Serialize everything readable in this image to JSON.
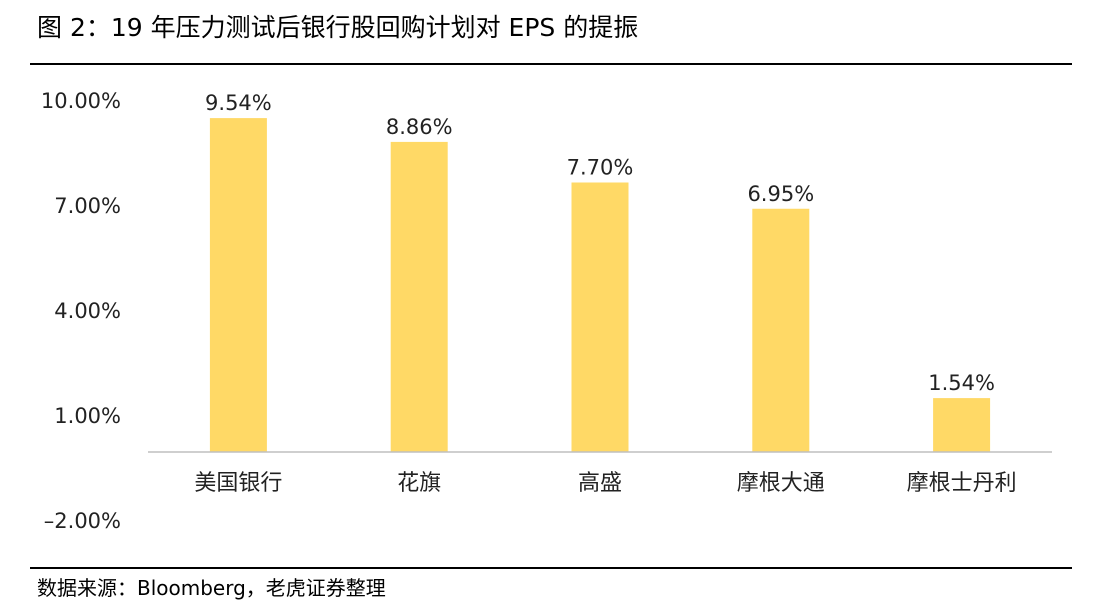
{
  "header": {
    "title": "图 2：19 年压力测试后银行股回购计划对 EPS 的提振"
  },
  "footer": {
    "source": "数据来源：Bloomberg，老虎证券整理"
  },
  "chart_data": {
    "type": "bar",
    "categories": [
      "美国银行",
      "花旗",
      "高盛",
      "摩根大通",
      "摩根士丹利"
    ],
    "values": [
      9.54,
      8.86,
      7.7,
      6.95,
      1.54
    ],
    "data_labels": [
      "9.54%",
      "8.86%",
      "7.70%",
      "6.95%",
      "1.54%"
    ],
    "unit": "%",
    "ylim": [
      -2.0,
      10.0
    ],
    "yticks": [
      10.0,
      7.0,
      4.0,
      1.0,
      -2.0
    ],
    "ytick_labels": [
      "10.00%",
      "7.00%",
      "4.00%",
      "1.00%",
      "–2.00%"
    ],
    "baseline": 0,
    "grid": false,
    "legend": "none",
    "title": "",
    "xlabel": "",
    "ylabel": "",
    "colors": {
      "bar": "#FFD966",
      "axis": "#BFBFBF",
      "text": "#222222"
    }
  }
}
